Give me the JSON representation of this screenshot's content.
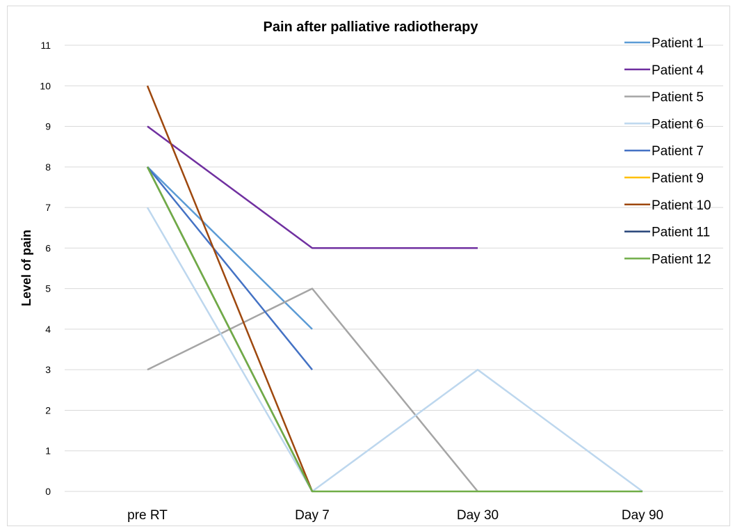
{
  "chart_data": {
    "type": "line",
    "title": "Pain after palliative radiotherapy",
    "xlabel": "",
    "ylabel": "Level of pain",
    "categories": [
      "pre RT",
      "Day 7",
      "Day 30",
      "Day 90"
    ],
    "ylim": [
      0,
      11
    ],
    "yticks": [
      0,
      1,
      2,
      3,
      4,
      5,
      6,
      7,
      8,
      9,
      10,
      11
    ],
    "grid": true,
    "legend_position": "right",
    "series": [
      {
        "name": "Patient 1",
        "color": "#5b9bd5",
        "values": [
          8,
          4,
          null,
          null
        ]
      },
      {
        "name": "Patient 4",
        "color": "#7030a0",
        "values": [
          9,
          6,
          6,
          null
        ]
      },
      {
        "name": "Patient 5",
        "color": "#a5a5a5",
        "values": [
          3,
          5,
          0,
          null
        ]
      },
      {
        "name": "Patient 6",
        "color": "#bdd7ee",
        "values": [
          7,
          0,
          3,
          0
        ]
      },
      {
        "name": "Patient 7",
        "color": "#4472c4",
        "values": [
          8,
          3,
          null,
          null
        ]
      },
      {
        "name": "Patient 9",
        "color": "#ffc000",
        "values": [
          8,
          0,
          null,
          null
        ]
      },
      {
        "name": "Patient 10",
        "color": "#9e480e",
        "values": [
          10,
          0,
          null,
          null
        ]
      },
      {
        "name": "Patient 11",
        "color": "#264478",
        "values": [
          8,
          0,
          null,
          null
        ]
      },
      {
        "name": "Patient 12",
        "color": "#70ad47",
        "values": [
          8,
          0,
          0,
          0
        ]
      }
    ]
  }
}
